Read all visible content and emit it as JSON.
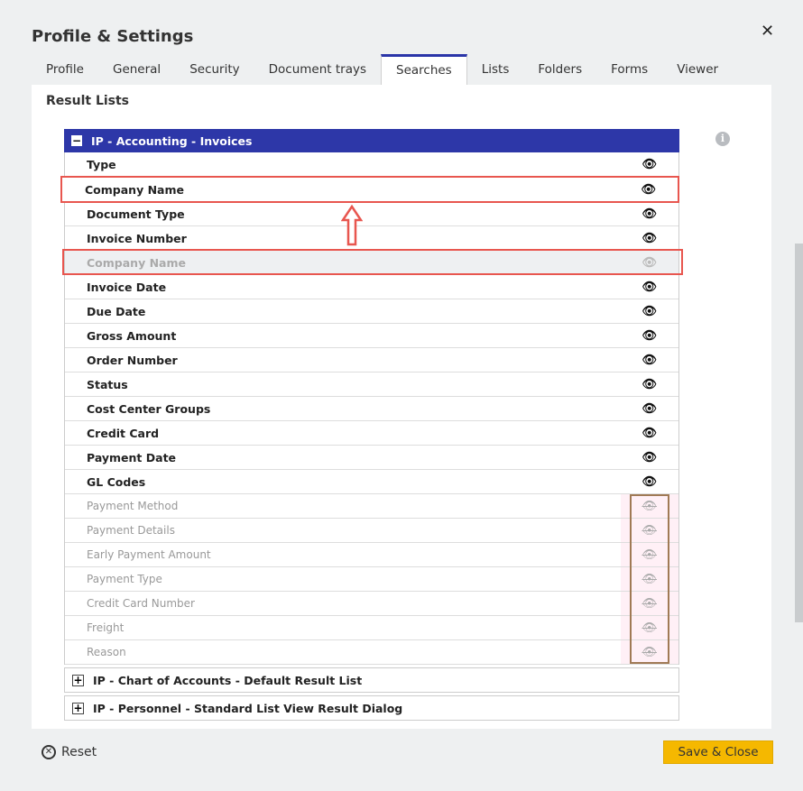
{
  "dialog": {
    "title": "Profile & Settings",
    "close_icon": "close-icon"
  },
  "tabs": [
    "Profile",
    "General",
    "Security",
    "Document trays",
    "Searches",
    "Lists",
    "Folders",
    "Forms",
    "Viewer"
  ],
  "active_tab": "Searches",
  "section_title": "Result Lists",
  "group": {
    "title": "IP - Accounting - Invoices",
    "toggle": "−",
    "visible_rows": [
      "Type",
      "Document Type",
      "Invoice Number",
      "Company Name",
      "Invoice Date",
      "Due Date",
      "Gross Amount",
      "Order Number",
      "Status",
      "Cost Center Groups",
      "Credit Card",
      "Payment Date",
      "GL Codes"
    ],
    "hidden_rows": [
      "Payment Method",
      "Payment Details",
      "Early Payment Amount",
      "Payment Type",
      "Credit Card Number",
      "Freight",
      "Reason"
    ]
  },
  "dragging_row": "Company Name",
  "collapsed_groups": [
    "IP - Chart of Accounts - Default Result List",
    "IP - Personnel - Standard List View Result Dialog"
  ],
  "expand_symbol": "+",
  "footer": {
    "reset": "Reset",
    "save": "Save & Close"
  },
  "colors": {
    "accent": "#2d37a8",
    "save": "#f5b800",
    "highlight": "#e8564f",
    "annotation": "#a07a55"
  }
}
